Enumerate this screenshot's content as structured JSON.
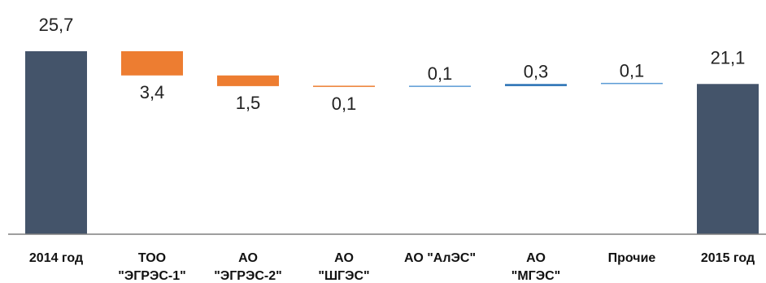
{
  "chart_data": {
    "type": "waterfall",
    "title": "",
    "xlabel": "",
    "ylabel": "",
    "ylim": [
      0,
      29
    ],
    "grid": false,
    "legend": "none",
    "categories": [
      [
        "2014 год"
      ],
      [
        "ТОО",
        "\"ЭГРЭС-1\""
      ],
      [
        "АО",
        "\"ЭГРЭС-2\""
      ],
      [
        "АО",
        "\"ШГЭС\""
      ],
      [
        "АО \"АлЭС\""
      ],
      [
        "АО",
        "\"МГЭС\""
      ],
      [
        "Прочие"
      ],
      [
        "2015 год"
      ]
    ],
    "value_labels": [
      "25,7",
      "3,4",
      "1,5",
      "0,1",
      "0,1",
      "0,3",
      "0,1",
      "21,1"
    ],
    "steps": [
      {
        "kind": "total",
        "value": 25.7
      },
      {
        "kind": "delta",
        "value": -3.4
      },
      {
        "kind": "delta",
        "value": -1.5
      },
      {
        "kind": "delta",
        "value": -0.1
      },
      {
        "kind": "delta",
        "value": 0.1
      },
      {
        "kind": "delta",
        "value": 0.3
      },
      {
        "kind": "delta",
        "value": 0.1
      },
      {
        "kind": "total",
        "value": 21.1
      }
    ],
    "colors": {
      "total": "#44546a",
      "decrease": "#ed7d31",
      "increase_thin": "#5b9bd5",
      "increase": "#2e75b6",
      "axis": "#7f7f7f"
    }
  }
}
